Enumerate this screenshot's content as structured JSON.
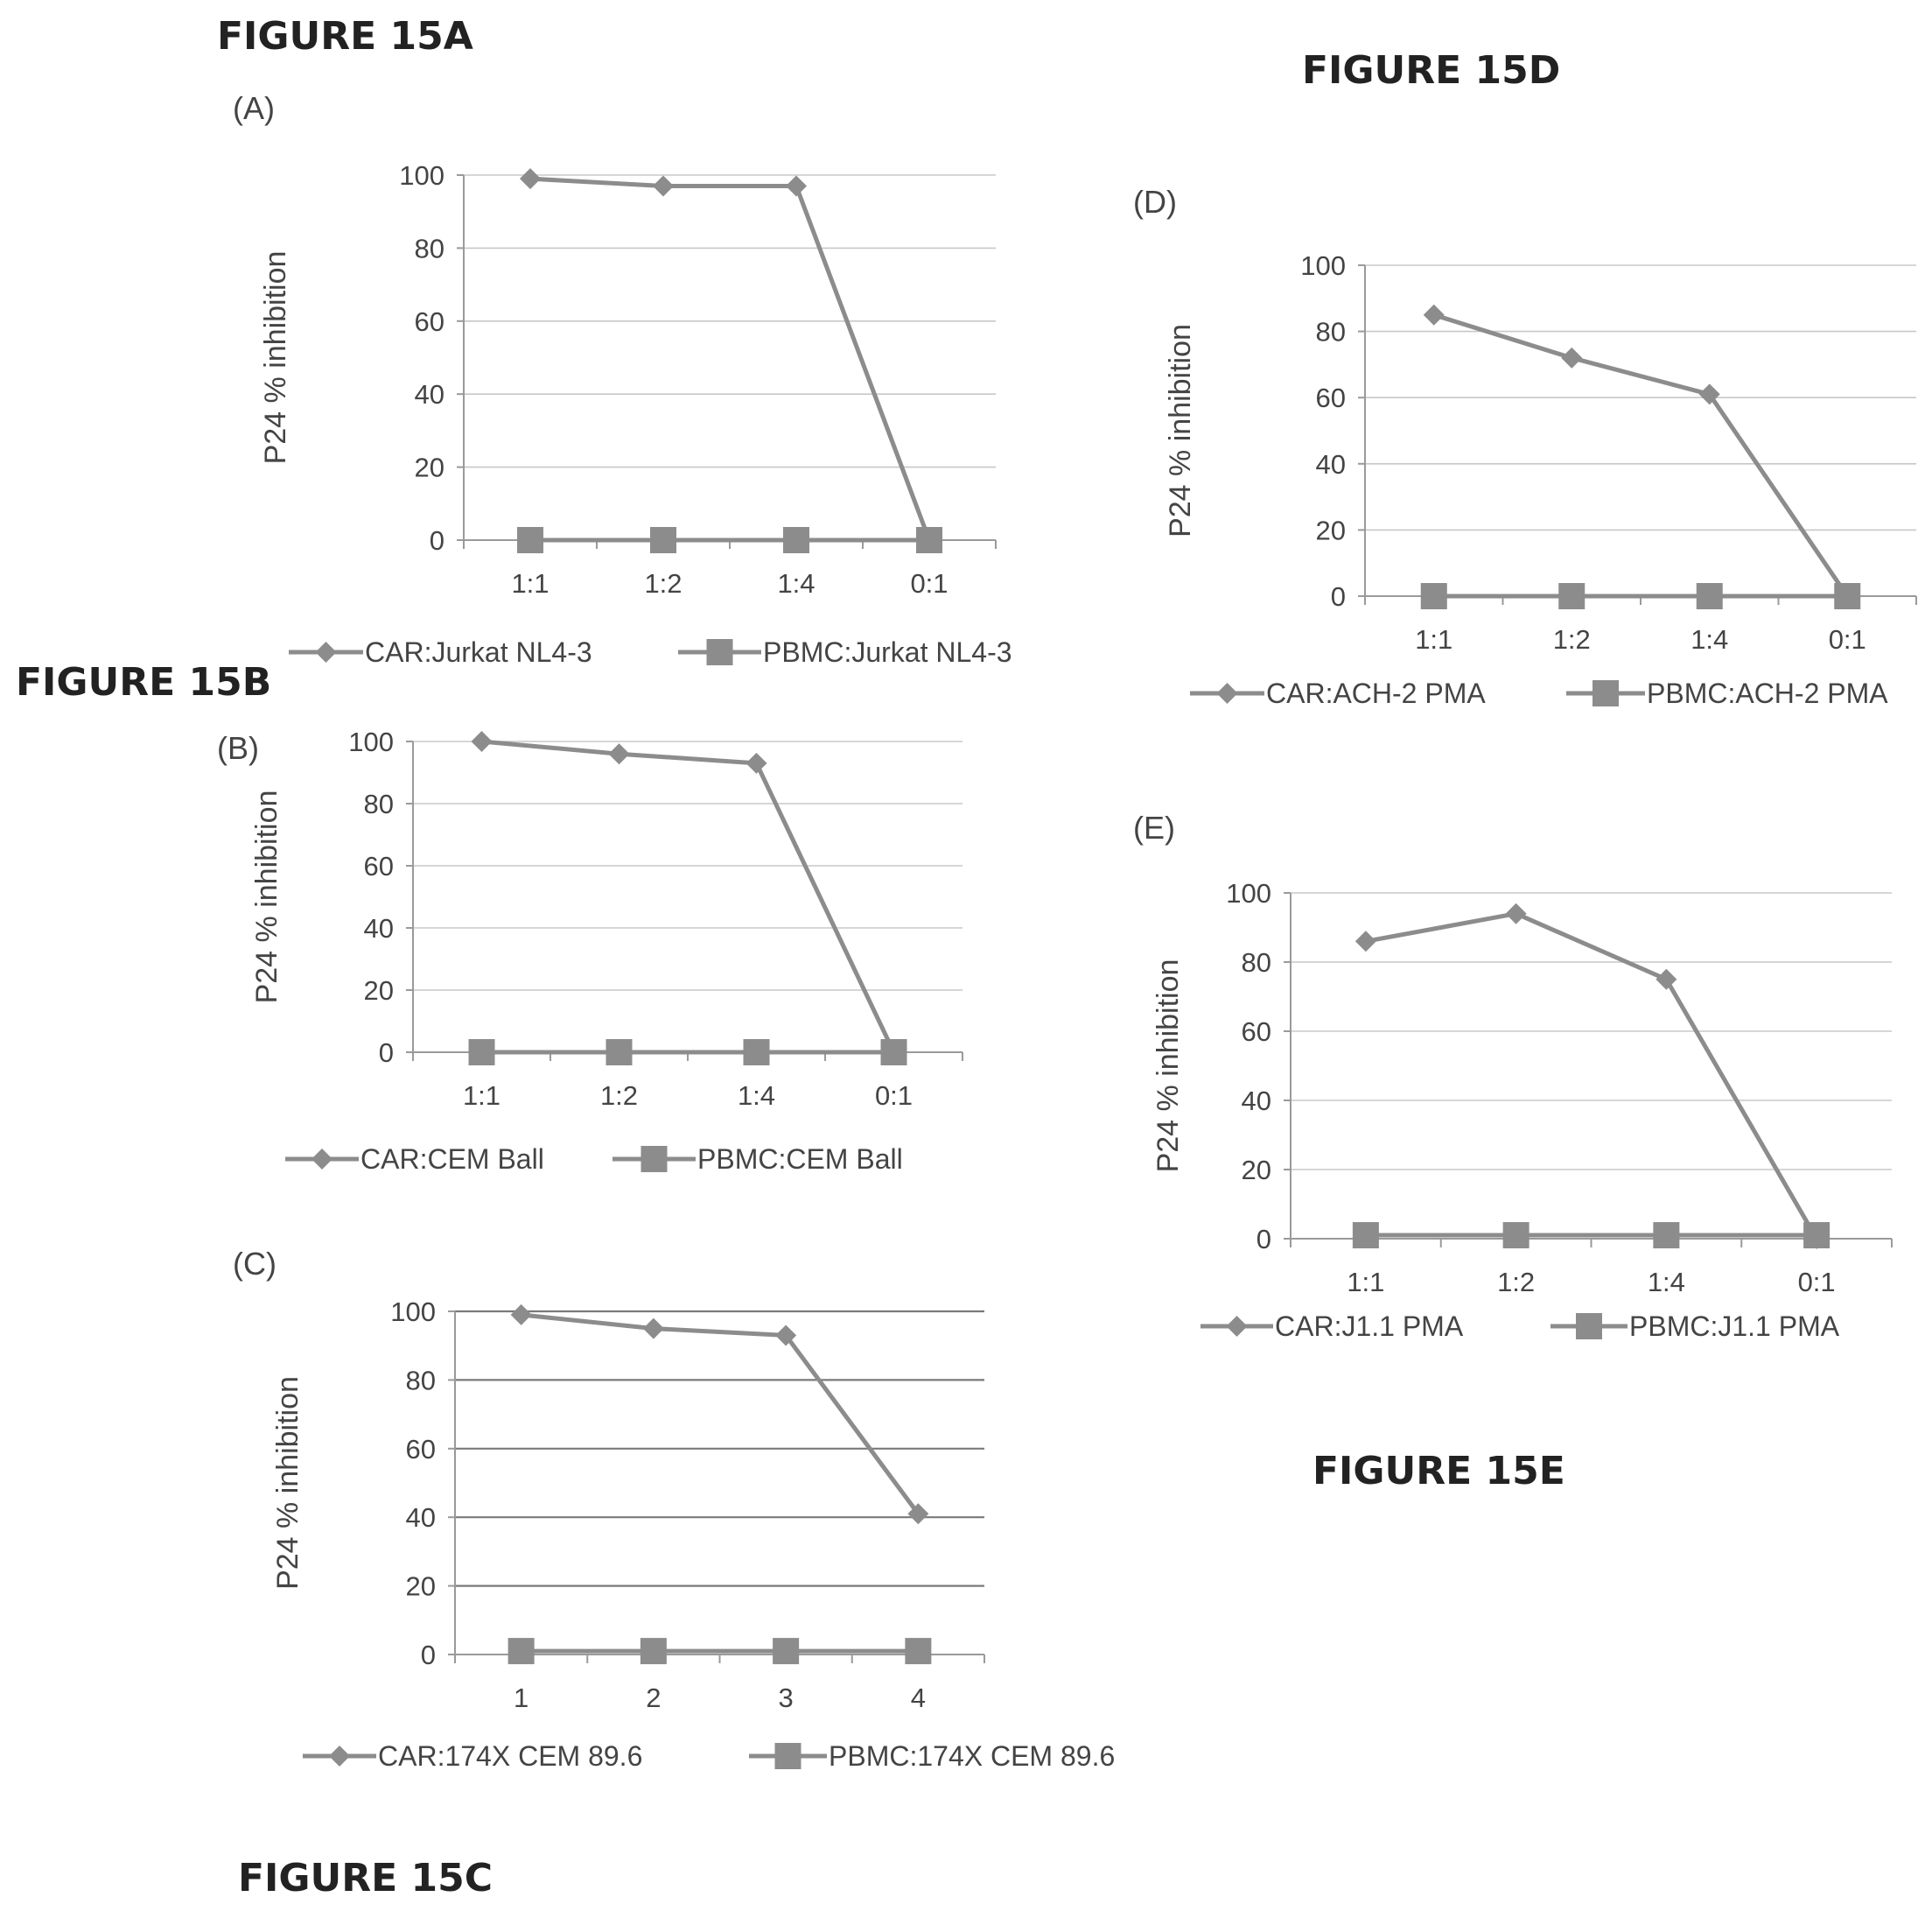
{
  "figure_titles": [
    "FIGURE 15A",
    "FIGURE 15B",
    "FIGURE 15C",
    "FIGURE 15D",
    "FIGURE 15E"
  ],
  "colors": {
    "series": "#8c8c8c",
    "axis": "#9a9a9a",
    "grid": "#c8c8c8",
    "grid_dark": "#7a7a7a",
    "text": "#444444"
  },
  "chart_data": [
    {
      "panel": "(A)",
      "type": "line",
      "title": "",
      "xlabel": "",
      "ylabel": "P24 % inhibition",
      "categories": [
        "1:1",
        "1:2",
        "1:4",
        "0:1"
      ],
      "ylim": [
        0,
        100
      ],
      "yticks": [
        0,
        20,
        40,
        60,
        80,
        100
      ],
      "grid": true,
      "legend": "bottom",
      "series": [
        {
          "name": "CAR:Jurkat NL4-3",
          "marker": "diamond",
          "values": [
            99,
            97,
            97,
            0
          ]
        },
        {
          "name": "PBMC:Jurkat NL4-3",
          "marker": "square",
          "values": [
            0,
            0,
            0,
            0
          ]
        }
      ]
    },
    {
      "panel": "(B)",
      "type": "line",
      "title": "",
      "xlabel": "",
      "ylabel": "P24 % inhibition",
      "categories": [
        "1:1",
        "1:2",
        "1:4",
        "0:1"
      ],
      "ylim": [
        0,
        100
      ],
      "yticks": [
        0,
        20,
        40,
        60,
        80,
        100
      ],
      "grid": true,
      "legend": "bottom",
      "series": [
        {
          "name": "CAR:CEM Ball",
          "marker": "diamond",
          "values": [
            100,
            96,
            93,
            0
          ]
        },
        {
          "name": "PBMC:CEM Ball",
          "marker": "square",
          "values": [
            0,
            0,
            0,
            0
          ]
        }
      ]
    },
    {
      "panel": "(C)",
      "type": "line",
      "title": "",
      "xlabel": "",
      "ylabel": "P24 % inhibition",
      "categories": [
        "1",
        "2",
        "3",
        "4"
      ],
      "ylim": [
        0,
        100
      ],
      "yticks": [
        0,
        20,
        40,
        60,
        80,
        100
      ],
      "grid": true,
      "legend": "bottom",
      "series": [
        {
          "name": "CAR:174X CEM 89.6",
          "marker": "diamond",
          "values": [
            99,
            95,
            93,
            41
          ]
        },
        {
          "name": "PBMC:174X CEM 89.6",
          "marker": "square",
          "values": [
            1,
            1,
            1,
            1
          ]
        }
      ]
    },
    {
      "panel": "(D)",
      "type": "line",
      "title": "",
      "xlabel": "",
      "ylabel": "P24 % inhibition",
      "categories": [
        "1:1",
        "1:2",
        "1:4",
        "0:1"
      ],
      "ylim": [
        0,
        100
      ],
      "yticks": [
        0,
        20,
        40,
        60,
        80,
        100
      ],
      "grid": true,
      "legend": "bottom",
      "series": [
        {
          "name": "CAR:ACH-2 PMA",
          "marker": "diamond",
          "values": [
            85,
            72,
            61,
            0
          ]
        },
        {
          "name": "PBMC:ACH-2 PMA",
          "marker": "square",
          "values": [
            0,
            0,
            0,
            0
          ]
        }
      ]
    },
    {
      "panel": "(E)",
      "type": "line",
      "title": "",
      "xlabel": "",
      "ylabel": "P24 % inhibition",
      "categories": [
        "1:1",
        "1:2",
        "1:4",
        "0:1"
      ],
      "ylim": [
        0,
        100
      ],
      "yticks": [
        0,
        20,
        40,
        60,
        80,
        100
      ],
      "grid": true,
      "legend": "bottom",
      "series": [
        {
          "name": "CAR:J1.1 PMA",
          "marker": "diamond",
          "values": [
            86,
            94,
            75,
            0
          ]
        },
        {
          "name": "PBMC:J1.1 PMA",
          "marker": "square",
          "values": [
            1,
            1,
            1,
            1
          ]
        }
      ]
    }
  ]
}
